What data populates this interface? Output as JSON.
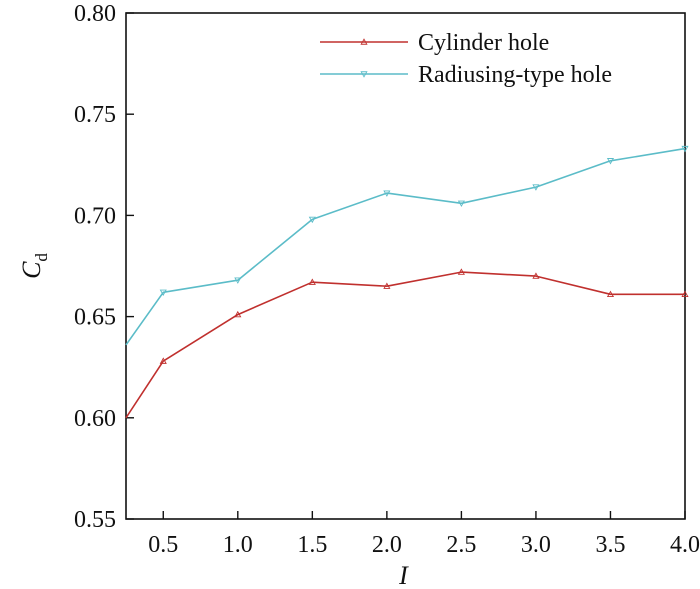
{
  "chart_data": {
    "type": "line",
    "title": "",
    "xlabel": "I",
    "ylabel": {
      "main": "C",
      "subscript": "d"
    },
    "xlim": [
      0.25,
      4.0
    ],
    "ylim": [
      0.55,
      0.8
    ],
    "x": [
      0.25,
      0.5,
      1.0,
      1.5,
      2.0,
      2.5,
      3.0,
      3.5,
      4.0
    ],
    "x_ticks": [
      "0.5",
      "1.0",
      "1.5",
      "2.0",
      "2.5",
      "3.0",
      "3.5",
      "4.0"
    ],
    "y_ticks": [
      "0.55",
      "0.60",
      "0.65",
      "0.70",
      "0.75",
      "0.80"
    ],
    "legend_position": "top-right",
    "grid": false,
    "series": [
      {
        "name": "Cylinder hole",
        "color": "#c0302e",
        "marker": "triangle-up",
        "values": [
          0.6,
          0.628,
          0.651,
          0.667,
          0.665,
          0.672,
          0.67,
          0.661,
          0.661
        ]
      },
      {
        "name": "Radiusing-type hole",
        "color": "#5bbcc8",
        "marker": "triangle-down",
        "values": [
          0.636,
          0.662,
          0.668,
          0.698,
          0.711,
          0.706,
          0.714,
          0.727,
          0.733
        ]
      }
    ]
  }
}
